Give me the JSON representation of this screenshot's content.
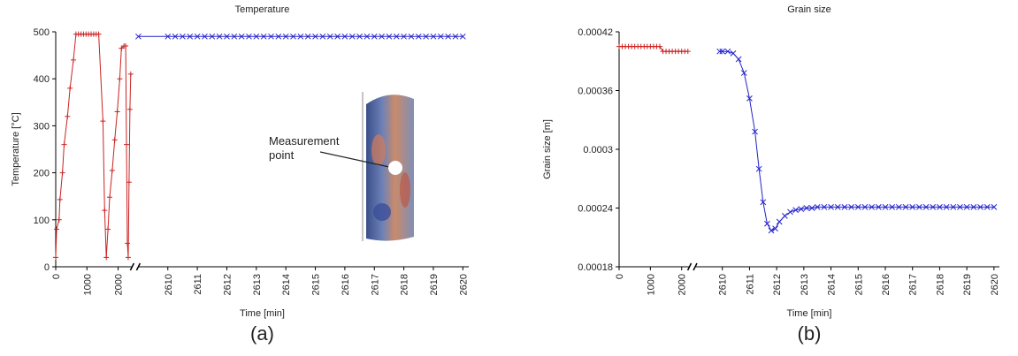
{
  "chart_data": [
    {
      "type": "line",
      "title": "Temperature",
      "xlabel": "Time [min]",
      "ylabel": "Temperature [°C]",
      "caption": "(a)",
      "annotation": "Measurement point",
      "xlim": [
        0,
        2620.2
      ],
      "xbreak": [
        2450,
        2609
      ],
      "ylim": [
        0,
        500
      ],
      "xticks": [
        0,
        1000,
        2000,
        2610,
        2611,
        2612,
        2613,
        2614,
        2615,
        2616,
        2617,
        2618,
        2619,
        2620
      ],
      "yticks": [
        0,
        100,
        200,
        300,
        400,
        500
      ],
      "series": [
        {
          "color": "#cc2222",
          "marker": "+",
          "x": [
            0,
            27,
            108,
            135,
            216,
            270,
            378,
            459,
            568,
            649,
            730,
            811,
            892,
            973,
            1054,
            1135,
            1216,
            1297,
            1378,
            1514,
            1568,
            1622,
            1676,
            1730,
            1811,
            1892,
            1973,
            2054,
            2108,
            2189,
            2243,
            2270,
            2297,
            2324,
            2351,
            2378,
            2405
          ],
          "values": [
            20,
            80,
            100,
            143,
            200,
            260,
            320,
            380,
            440,
            495,
            495,
            495,
            495,
            495,
            495,
            495,
            495,
            495,
            495,
            310,
            120,
            20,
            80,
            148,
            205,
            270,
            330,
            400,
            465,
            470,
            470,
            260,
            50,
            20,
            180,
            335,
            410
          ]
        },
        {
          "color": "#2222cc",
          "marker": "x",
          "x": [
            2609,
            2610,
            2610.25,
            2610.5,
            2610.75,
            2611,
            2611.25,
            2611.5,
            2611.75,
            2612,
            2612.25,
            2612.5,
            2612.75,
            2613,
            2613.25,
            2613.5,
            2613.75,
            2614,
            2614.25,
            2614.5,
            2614.75,
            2615,
            2615.25,
            2615.5,
            2615.75,
            2616,
            2616.25,
            2616.5,
            2616.75,
            2617,
            2617.25,
            2617.5,
            2617.75,
            2618,
            2618.25,
            2618.5,
            2618.75,
            2619,
            2619.25,
            2619.5,
            2619.75,
            2620
          ],
          "values": [
            490,
            490,
            490,
            490,
            490,
            490,
            490,
            490,
            490,
            490,
            490,
            490,
            490,
            490,
            490,
            490,
            490,
            490,
            490,
            490,
            490,
            490,
            490,
            490,
            490,
            490,
            490,
            490,
            490,
            490,
            490,
            490,
            490,
            490,
            490,
            490,
            490,
            490,
            490,
            490,
            490,
            490
          ]
        }
      ]
    },
    {
      "type": "line",
      "title": "Grain size",
      "xlabel": "Time [min]",
      "ylabel": "Grain size [m]",
      "caption": "(b)",
      "xlim": [
        0,
        2620.2
      ],
      "xbreak": [
        2250,
        2609
      ],
      "ylim": [
        0.00018,
        0.00042
      ],
      "xticks": [
        0,
        1000,
        2000,
        2610,
        2611,
        2612,
        2613,
        2614,
        2615,
        2616,
        2617,
        2618,
        2619,
        2620
      ],
      "yticks": [
        0.00018,
        0.00024,
        0.0003,
        0.00036,
        0.00042
      ],
      "series": [
        {
          "color": "#cc2222",
          "marker": "+",
          "x": [
            0,
            100,
            200,
            300,
            400,
            500,
            600,
            700,
            800,
            900,
            1000,
            1100,
            1200,
            1300,
            1400,
            1500,
            1600,
            1700,
            1800,
            1900,
            2000,
            2100,
            2200
          ],
          "values": [
            0.000405,
            0.000405,
            0.000405,
            0.000405,
            0.000405,
            0.000405,
            0.000405,
            0.000405,
            0.000405,
            0.000405,
            0.000405,
            0.000405,
            0.000405,
            0.000405,
            0.0004,
            0.0004,
            0.0004,
            0.0004,
            0.0004,
            0.0004,
            0.0004,
            0.0004,
            0.0004
          ]
        },
        {
          "color": "#2222cc",
          "marker": "x",
          "x": [
            2609.9,
            2610,
            2610.2,
            2610.4,
            2610.6,
            2610.8,
            2611,
            2611.2,
            2611.35,
            2611.5,
            2611.65,
            2611.8,
            2611.95,
            2612.1,
            2612.3,
            2612.5,
            2612.7,
            2612.9,
            2613.1,
            2613.3,
            2613.5,
            2613.75,
            2614,
            2614.25,
            2614.5,
            2614.75,
            2615,
            2615.25,
            2615.5,
            2615.75,
            2616,
            2616.25,
            2616.5,
            2616.75,
            2617,
            2617.25,
            2617.5,
            2617.75,
            2618,
            2618.25,
            2618.5,
            2618.75,
            2619,
            2619.25,
            2619.5,
            2619.75,
            2620
          ],
          "values": [
            0.0004,
            0.0004,
            0.0004,
            0.000398,
            0.000392,
            0.000378,
            0.000352,
            0.000318,
            0.00028,
            0.000246,
            0.000224,
            0.000217,
            0.000219,
            0.000226,
            0.000232,
            0.000236,
            0.000238,
            0.000239,
            0.00024,
            0.00024,
            0.000241,
            0.000241,
            0.000241,
            0.000241,
            0.000241,
            0.000241,
            0.000241,
            0.000241,
            0.000241,
            0.000241,
            0.000241,
            0.000241,
            0.000241,
            0.000241,
            0.000241,
            0.000241,
            0.000241,
            0.000241,
            0.000241,
            0.000241,
            0.000241,
            0.000241,
            0.000241,
            0.000241,
            0.000241,
            0.000241,
            0.000241
          ]
        }
      ]
    }
  ]
}
